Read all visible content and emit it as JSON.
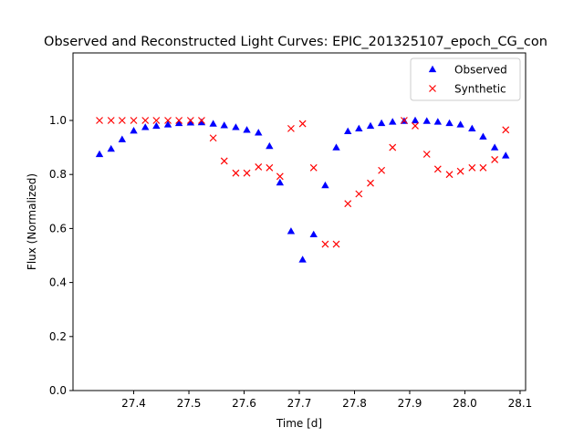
{
  "chart_data": {
    "type": "scatter",
    "title": "Observed and Reconstructed Light Curves: EPIC_201325107_epoch_CG_con",
    "xlabel": "Time [d]",
    "ylabel": "Flux (Normalized)",
    "xlim": [
      27.29,
      28.11
    ],
    "ylim": [
      0.0,
      1.25
    ],
    "xticks": [
      "27.4",
      "27.5",
      "27.6",
      "27.7",
      "27.8",
      "27.9",
      "28.0",
      "28.1"
    ],
    "yticks": [
      "0.0",
      "0.2",
      "0.4",
      "0.6",
      "0.8",
      "1.0"
    ],
    "legend_position": "upper right",
    "grid": false,
    "series": [
      {
        "name": "Observed",
        "marker": "triangle",
        "color": "#0000ff",
        "points": [
          [
            27.338,
            0.875
          ],
          [
            27.359,
            0.895
          ],
          [
            27.379,
            0.93
          ],
          [
            27.4,
            0.962
          ],
          [
            27.421,
            0.975
          ],
          [
            27.441,
            0.98
          ],
          [
            27.462,
            0.985
          ],
          [
            27.482,
            0.99
          ],
          [
            27.503,
            0.992
          ],
          [
            27.523,
            0.993
          ],
          [
            27.544,
            0.988
          ],
          [
            27.564,
            0.982
          ],
          [
            27.585,
            0.975
          ],
          [
            27.605,
            0.965
          ],
          [
            27.626,
            0.955
          ],
          [
            27.646,
            0.905
          ],
          [
            27.665,
            0.77
          ],
          [
            27.685,
            0.59
          ],
          [
            27.706,
            0.485
          ],
          [
            27.726,
            0.578
          ],
          [
            27.747,
            0.76
          ],
          [
            27.767,
            0.9
          ],
          [
            27.788,
            0.96
          ],
          [
            27.808,
            0.97
          ],
          [
            27.829,
            0.98
          ],
          [
            27.849,
            0.99
          ],
          [
            27.869,
            0.995
          ],
          [
            27.89,
            0.998
          ],
          [
            27.91,
            1.0
          ],
          [
            27.931,
            0.998
          ],
          [
            27.951,
            0.995
          ],
          [
            27.972,
            0.99
          ],
          [
            27.992,
            0.985
          ],
          [
            28.013,
            0.97
          ],
          [
            28.033,
            0.94
          ],
          [
            28.054,
            0.9
          ],
          [
            28.074,
            0.87
          ]
        ]
      },
      {
        "name": "Synthetic",
        "marker": "x",
        "color": "#ff0000",
        "points": [
          [
            27.338,
            1.0
          ],
          [
            27.359,
            1.0
          ],
          [
            27.379,
            1.0
          ],
          [
            27.4,
            1.0
          ],
          [
            27.421,
            1.0
          ],
          [
            27.441,
            1.0
          ],
          [
            27.462,
            1.0
          ],
          [
            27.482,
            1.0
          ],
          [
            27.503,
            1.0
          ],
          [
            27.523,
            1.0
          ],
          [
            27.544,
            0.935
          ],
          [
            27.564,
            0.85
          ],
          [
            27.585,
            0.805
          ],
          [
            27.605,
            0.805
          ],
          [
            27.626,
            0.828
          ],
          [
            27.646,
            0.825
          ],
          [
            27.665,
            0.793
          ],
          [
            27.685,
            0.97
          ],
          [
            27.706,
            0.988
          ],
          [
            27.726,
            0.825
          ],
          [
            27.747,
            0.542
          ],
          [
            27.767,
            0.542
          ],
          [
            27.788,
            0.692
          ],
          [
            27.808,
            0.728
          ],
          [
            27.829,
            0.768
          ],
          [
            27.849,
            0.815
          ],
          [
            27.869,
            0.9
          ],
          [
            27.89,
            1.0
          ],
          [
            27.91,
            0.98
          ],
          [
            27.931,
            0.875
          ],
          [
            27.951,
            0.82
          ],
          [
            27.972,
            0.8
          ],
          [
            27.992,
            0.812
          ],
          [
            28.013,
            0.825
          ],
          [
            28.033,
            0.825
          ],
          [
            28.054,
            0.855
          ],
          [
            28.074,
            0.965
          ]
        ]
      }
    ]
  }
}
